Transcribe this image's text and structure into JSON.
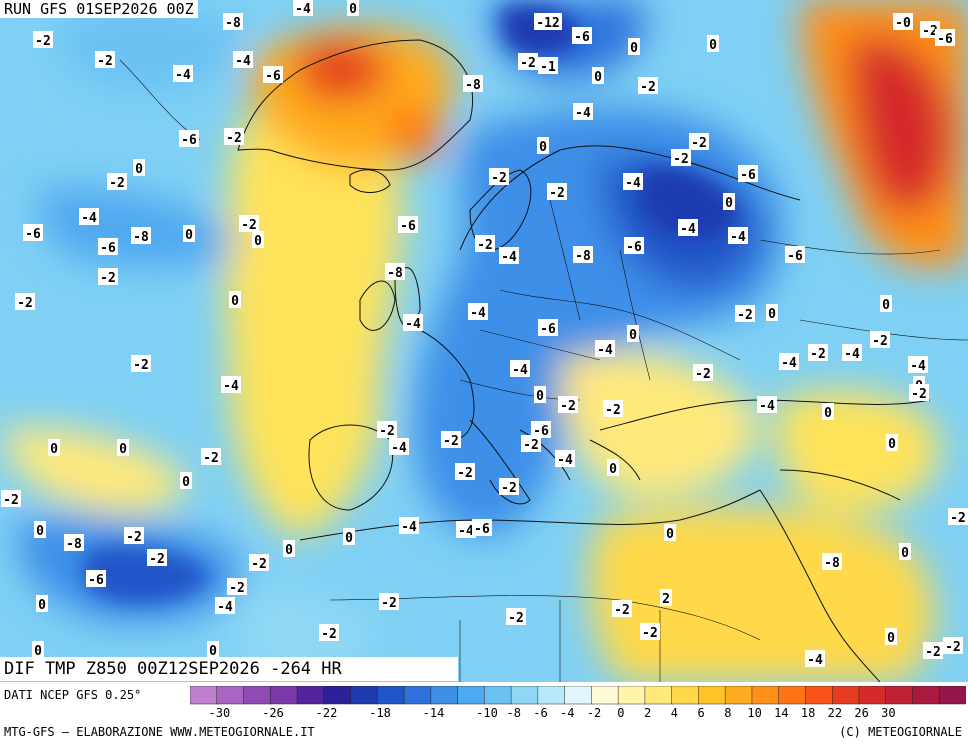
{
  "header": {
    "run_title": "RUN GFS 01SEP2026 00Z"
  },
  "product": {
    "title": "DIF TMP Z850 00Z12SEP2026 -264 HR"
  },
  "footer": {
    "source": "DATI NCEP GFS 0.25°",
    "credit": "MTG-GFS — ELABORAZIONE WWW.METEOGIORNALE.IT",
    "copyright": "(C) METEOGIORNALE"
  },
  "legend": {
    "colors": [
      "#c07fcf",
      "#a865c2",
      "#8f4bb4",
      "#7a38a8",
      "#53249c",
      "#2b2198",
      "#1f3bb0",
      "#2255c8",
      "#2f72dc",
      "#3d8fe8",
      "#4fa9f0",
      "#6ac2f3",
      "#8fd8f5",
      "#b8e9f8",
      "#e0f6fb",
      "#fffbd6",
      "#fff5a8",
      "#ffe97a",
      "#ffd94a",
      "#ffc32a",
      "#ffab1f",
      "#ff8f19",
      "#ff7216",
      "#f85418",
      "#e63c1f",
      "#d42a2a",
      "#bf2035",
      "#a81a3e",
      "#95174a"
    ],
    "tick_labels": [
      "-30",
      "-26",
      "-22",
      "-18",
      "-14",
      "-10",
      "-8",
      "-6",
      "-4",
      "-2",
      "0",
      "2",
      "4",
      "6",
      "8",
      "10",
      "14",
      "18",
      "22",
      "26",
      "30"
    ]
  },
  "map_labels": [
    "-8",
    "-4",
    "0",
    "-2",
    "-4",
    "-12",
    "-6",
    "-0",
    "-2",
    "-6",
    "0",
    "-2",
    "-4",
    "-6",
    "-2",
    "-1",
    "-8",
    "0",
    "0",
    "-2",
    "-4",
    "-6",
    "-2",
    "0",
    "0",
    "-4",
    "-2",
    "-2",
    "-2",
    "-6",
    "-2",
    "-2",
    "-4",
    "-8",
    "0",
    "-2",
    "0",
    "-6",
    "-6",
    "-4",
    "0",
    "-4",
    "-6",
    "-6",
    "-4",
    "-2",
    "-2",
    "-8",
    "-6",
    "-8",
    "0",
    "-2",
    "-4",
    "-4",
    "-6",
    "-2",
    "0",
    "0",
    "0",
    "-4",
    "-2",
    "-4",
    "-2",
    "-4",
    "-4",
    "-4",
    "0",
    "-2",
    "-4",
    "-2",
    "0",
    "-2",
    "-4",
    "0",
    "-2",
    "-6",
    "-2",
    "-2",
    "-2",
    "-4",
    "-2",
    "0",
    "0",
    "-2",
    "0",
    "-4",
    "0",
    "-2",
    "-2",
    "0",
    "-2",
    "-2",
    "-4",
    "-6",
    "0",
    "-8",
    "-2",
    "-4",
    "0",
    "0",
    "-2",
    "-2",
    "0",
    "-8",
    "0",
    "-6",
    "-2",
    "0",
    "-4",
    "-2",
    "-2",
    "-2",
    "2",
    "-2",
    "0",
    "-2",
    "0",
    "-2",
    "-2",
    "0",
    "-4"
  ],
  "colors": {
    "sea_cold": "#49a8ee",
    "land_warm": "#ffd23a",
    "hot": "#d8262e"
  }
}
